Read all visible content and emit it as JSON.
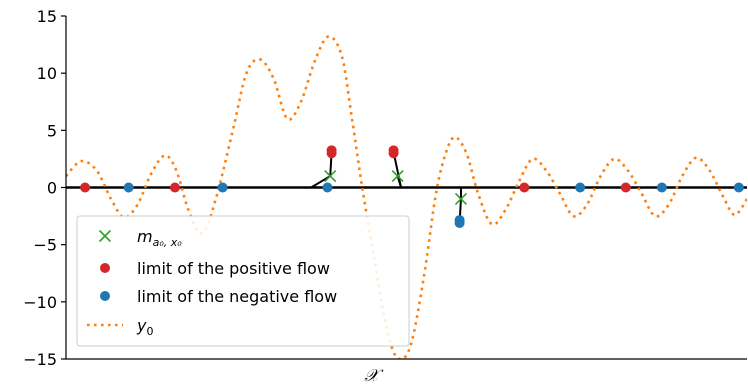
{
  "chart_data": {
    "type": "line",
    "xlabel": "𝒳",
    "ylabel": "",
    "xlim": [
      0,
      10
    ],
    "ylim": [
      -15,
      15
    ],
    "yticks": [
      15,
      10,
      5,
      0,
      -5,
      -10,
      -15
    ],
    "show_xticks": false,
    "grid": false,
    "legend_position": "lower-left",
    "colors": {
      "curve": "#ff7f0e",
      "positive": "#d62728",
      "negative": "#1f77b4",
      "cross": "#2ca02c",
      "axis": "#000000"
    },
    "curve": {
      "name": "y₀",
      "x": [
        0.0,
        0.22,
        0.45,
        0.66,
        0.85,
        1.05,
        1.25,
        1.45,
        1.62,
        1.8,
        2.0,
        2.2,
        2.45,
        2.65,
        2.85,
        3.05,
        3.25,
        3.45,
        3.65,
        3.85,
        4.05,
        4.2,
        4.35,
        4.52,
        4.68,
        4.85,
        5.05,
        5.25,
        5.42,
        5.55,
        5.7,
        5.88,
        6.05,
        6.25,
        6.45,
        6.65,
        6.85,
        7.05,
        7.25,
        7.45,
        7.65,
        7.85,
        8.05,
        8.25,
        8.45,
        8.65,
        8.85,
        9.05,
        9.25,
        9.45,
        9.65,
        9.82,
        10.0
      ],
      "y": [
        1.0,
        2.3,
        1.5,
        -1.0,
        -2.6,
        -1.5,
        1.2,
        2.8,
        1.5,
        -2.0,
        -4.0,
        -1.0,
        5.0,
        10.0,
        11.2,
        9.5,
        6.0,
        7.5,
        11.0,
        13.2,
        11.5,
        6.0,
        0.0,
        -6.0,
        -11.5,
        -14.8,
        -14.0,
        -8.0,
        -1.0,
        2.5,
        4.4,
        3.0,
        -0.5,
        -3.2,
        -2.0,
        0.5,
        2.5,
        1.5,
        -0.5,
        -2.5,
        -1.5,
        1.0,
        2.5,
        1.5,
        -0.5,
        -2.5,
        -1.5,
        1.0,
        2.6,
        1.5,
        -0.8,
        -2.4,
        -1.0
      ]
    },
    "segments_x": [
      [
        [
          3.6,
          0.0
        ],
        [
          3.88,
          1.0
        ],
        [
          3.9,
          3.1
        ]
      ],
      [
        [
          4.87,
          1.0
        ],
        [
          4.92,
          0.0
        ],
        [
          4.81,
          3.1
        ]
      ],
      [
        [
          5.8,
          0.0
        ],
        [
          5.8,
          -1.0
        ],
        [
          5.78,
          -3.0
        ]
      ]
    ],
    "series": [
      {
        "name": "m_{a₀,x₀}",
        "label_main": "m",
        "label_sub": "a₀, x₀",
        "marker": "x",
        "points": [
          [
            3.88,
            1.0
          ],
          [
            4.87,
            1.0
          ],
          [
            5.8,
            -1.0
          ]
        ]
      },
      {
        "name": "limit of the positive flow",
        "label": "limit of the positive flow",
        "marker": "circle",
        "points": [
          [
            0.28,
            0
          ],
          [
            1.6,
            0
          ],
          [
            6.73,
            0
          ],
          [
            8.22,
            0
          ],
          [
            3.9,
            3.0
          ],
          [
            3.9,
            3.25
          ],
          [
            4.81,
            3.0
          ],
          [
            4.81,
            3.25
          ]
        ]
      },
      {
        "name": "limit of the negative flow",
        "label": "limit of the negative flow",
        "marker": "circle",
        "points": [
          [
            0.92,
            0
          ],
          [
            2.3,
            0
          ],
          [
            3.84,
            0
          ],
          [
            7.55,
            0
          ],
          [
            8.75,
            0
          ],
          [
            9.88,
            0
          ],
          [
            5.78,
            -2.85
          ],
          [
            5.78,
            -3.1
          ]
        ]
      },
      {
        "name": "y₀",
        "label_main": "y",
        "label_sub": "0",
        "marker": "dotted-line"
      }
    ]
  }
}
